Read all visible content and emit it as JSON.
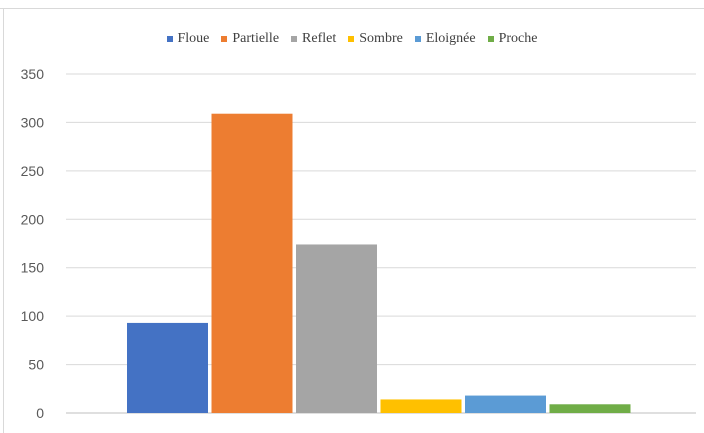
{
  "chart_data": {
    "type": "bar",
    "title": "",
    "xlabel": "",
    "ylabel": "",
    "ylim": [
      0,
      350
    ],
    "yticks": [
      0,
      50,
      100,
      150,
      200,
      250,
      300,
      350
    ],
    "grid": true,
    "legend_position": "top",
    "categories": [
      "Floue",
      "Partielle",
      "Reflet",
      "Sombre",
      "Eloignée",
      "Proche"
    ],
    "values": [
      93,
      309,
      174,
      14,
      18,
      9
    ],
    "colors": [
      "#4472c4",
      "#ed7d31",
      "#a5a5a5",
      "#ffc000",
      "#5b9bd5",
      "#70ad47"
    ]
  }
}
